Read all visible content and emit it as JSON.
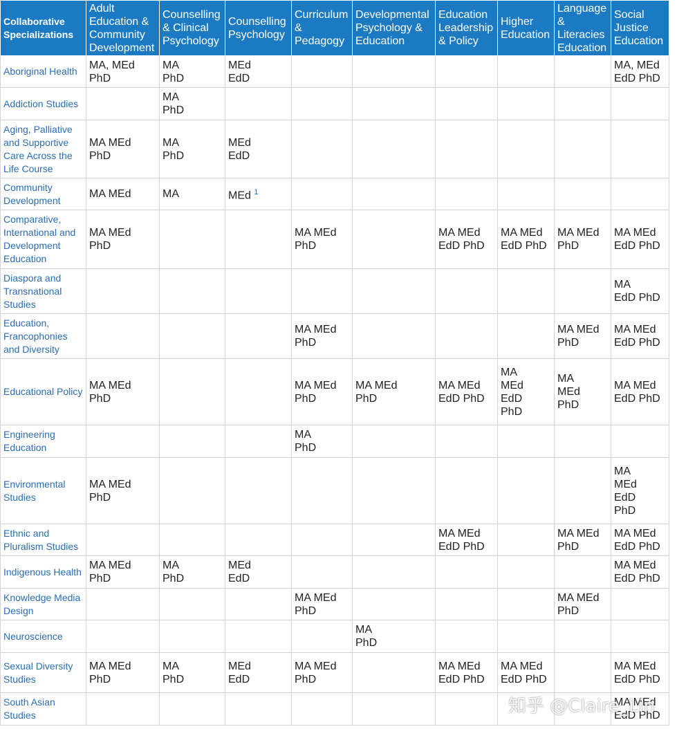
{
  "table": {
    "header": [
      "Collaborative Specializations",
      "Adult Education & Community Development",
      "Counselling & Clinical Psychology",
      "Counselling Psychology",
      "Curriculum & Pedagogy",
      "Developmental Psychology & Education",
      "Education Leadership & Policy",
      "Higher Education",
      "Language & Literacies Education",
      "Social Justice Education"
    ],
    "rows": [
      {
        "name": "Aboriginal Health",
        "cells": [
          "MA, MEd\nPhD",
          "MA\nPhD",
          "MEd\nEdD",
          null,
          null,
          null,
          null,
          null,
          "MA, MEd\nEdD PhD"
        ]
      },
      {
        "name": "Addiction Studies",
        "cells": [
          null,
          "MA\nPhD",
          null,
          null,
          null,
          null,
          null,
          null,
          null
        ]
      },
      {
        "name": "Aging, Palliative and Supportive Care Across the Life Course",
        "cells": [
          "MA MEd\nPhD",
          "MA\nPhD",
          "MEd\nEdD",
          null,
          null,
          null,
          null,
          null,
          null
        ]
      },
      {
        "name": "Community Development",
        "cells": [
          "MA MEd",
          "MA",
          {
            "text": "MEd",
            "sup": "1"
          },
          null,
          null,
          null,
          null,
          null,
          null
        ]
      },
      {
        "name": "Comparative, International and Development Education",
        "cells": [
          "MA MEd\nPhD",
          null,
          null,
          "MA MEd\nPhD",
          null,
          "MA MEd\nEdD PhD",
          "MA  MEd\nEdD PhD",
          "MA MEd\nPhD",
          "MA MEd\nEdD PhD"
        ]
      },
      {
        "name": "Diaspora and Transnational Studies",
        "cells": [
          null,
          null,
          null,
          null,
          null,
          null,
          null,
          null,
          "MA\nEdD PhD"
        ]
      },
      {
        "name": "Education, Francophonies and Diversity",
        "cells": [
          null,
          null,
          null,
          "MA MEd\nPhD",
          null,
          null,
          null,
          "MA MEd\nPhD",
          "MA MEd\nEdD PhD"
        ]
      },
      {
        "name": "Educational Policy",
        "cells": [
          "MA MEd\nPhD",
          null,
          null,
          "MA MEd\nPhD",
          "MA MEd\nPhD",
          "MA MEd\nEdD PhD",
          "MA\nMEd\nEdD\nPhD",
          "MA\nMEd\nPhD",
          "MA MEd\nEdD PhD"
        ]
      },
      {
        "name": "Engineering Education",
        "cells": [
          null,
          null,
          null,
          "MA\nPhD",
          null,
          null,
          null,
          null,
          null
        ]
      },
      {
        "name": "Environmental Studies",
        "cells": [
          "MA MEd\nPhD",
          null,
          null,
          null,
          null,
          null,
          null,
          null,
          "MA\nMEd\nEdD\nPhD"
        ]
      },
      {
        "name": "Ethnic and Pluralism Studies",
        "cells": [
          null,
          null,
          null,
          null,
          null,
          "MA MEd\nEdD PhD",
          null,
          "MA MEd\nPhD",
          "MA MEd\nEdD PhD"
        ]
      },
      {
        "name": "Indigenous Health",
        "cells": [
          "MA MEd\nPhD",
          "MA\nPhD",
          "MEd\nEdD",
          null,
          null,
          null,
          null,
          null,
          "MA MEd\nEdD PhD"
        ]
      },
      {
        "name": "Knowledge Media Design",
        "cells": [
          null,
          null,
          null,
          "MA MEd\nPhD",
          null,
          null,
          null,
          "MA MEd\nPhD",
          null
        ]
      },
      {
        "name": "Neuroscience",
        "cells": [
          null,
          null,
          null,
          null,
          "MA\nPhD",
          null,
          null,
          null,
          null
        ]
      },
      {
        "name": "Sexual Diversity Studies",
        "cells": [
          "MA MEd\nPhD",
          "MA\nPhD",
          "MEd\nEdD",
          "MA MEd\nPhD",
          null,
          "MA MEd\nEdD PhD",
          "MA MEd\nEdD PhD",
          null,
          "MA MEd\nEdD PhD"
        ]
      },
      {
        "name": "South Asian Studies",
        "cells": [
          null,
          null,
          null,
          null,
          null,
          null,
          null,
          null,
          "MA MEd\nEdD PhD"
        ]
      }
    ]
  },
  "watermark": "知乎 @Claire_Lin"
}
